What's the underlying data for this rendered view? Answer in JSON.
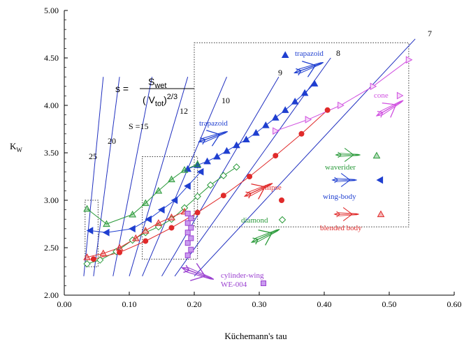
{
  "chart_data": {
    "type": "scatter",
    "xlabel": "Küchemann's tau",
    "ylabel": "K",
    "ylabel_sub": "W",
    "xlim": [
      0.0,
      0.6
    ],
    "ylim": [
      2.0,
      5.0
    ],
    "xticks": [
      "0.00",
      "0.10",
      "0.20",
      "0.30",
      "0.40",
      "0.50",
      "0.60"
    ],
    "yticks": [
      "2.00",
      "2.50",
      "3.00",
      "3.50",
      "4.00",
      "4.50",
      "5.00"
    ],
    "grid": false,
    "formula": {
      "lhs": "s =",
      "num": "S",
      "num_sub": "wet",
      "den_open": "( V",
      "den_sub": "tot",
      "den_close": ")",
      "den_exp": "2/3"
    },
    "s_lines": [
      {
        "label": "7",
        "x0": 0.2,
        "x1": 0.54
      },
      {
        "label": "8",
        "x0": 0.17,
        "x1": 0.41
      },
      {
        "label": "9",
        "x0": 0.15,
        "x1": 0.33
      },
      {
        "label": "10",
        "x0": 0.12,
        "x1": 0.25
      },
      {
        "label": "12",
        "x0": 0.1,
        "x1": 0.19
      },
      {
        "label": "S =15",
        "x0": 0.075,
        "x1": 0.135
      },
      {
        "label": "20",
        "x0": 0.045,
        "x1": 0.085
      },
      {
        "label": "25",
        "x0": 0.03,
        "x1": 0.06
      }
    ],
    "series": [
      {
        "name": "trapazoid",
        "color": "#1f3fd0",
        "marker": "triangle-up",
        "x": [
          0.19,
          0.205,
          0.22,
          0.235,
          0.25,
          0.265,
          0.28,
          0.295,
          0.31,
          0.325,
          0.34,
          0.355,
          0.37,
          0.385
        ],
        "y": [
          3.33,
          3.37,
          3.41,
          3.46,
          3.52,
          3.58,
          3.64,
          3.71,
          3.79,
          3.87,
          3.95,
          4.04,
          4.13,
          4.23
        ]
      },
      {
        "name": "trapazoid",
        "color": "#1f3fd0",
        "marker": "triangle-up",
        "x": [
          0.34
        ],
        "y": [
          4.53
        ]
      },
      {
        "name": "waverider",
        "color": "#2a9a3a",
        "marker": "triangle-up",
        "x": [
          0.035,
          0.065,
          0.105,
          0.125,
          0.145,
          0.165,
          0.185,
          0.205
        ],
        "y": [
          2.91,
          2.75,
          2.85,
          2.97,
          3.1,
          3.22,
          3.32,
          3.38
        ]
      },
      {
        "name": "wing-body",
        "color": "#1f3fd0",
        "marker": "triangle-left",
        "x": [
          0.04,
          0.065,
          0.105,
          0.13,
          0.15,
          0.17,
          0.19,
          0.21
        ],
        "y": [
          2.68,
          2.66,
          2.7,
          2.8,
          2.9,
          3.0,
          3.15,
          3.3
        ]
      },
      {
        "name": "diamond",
        "color": "#2a9a3a",
        "marker": "diamond",
        "x": [
          0.035,
          0.055,
          0.08,
          0.105,
          0.125,
          0.145,
          0.165,
          0.185,
          0.205,
          0.225,
          0.245,
          0.265
        ],
        "y": [
          2.33,
          2.37,
          2.46,
          2.58,
          2.66,
          2.72,
          2.8,
          2.92,
          3.04,
          3.16,
          3.26,
          3.35
        ]
      },
      {
        "name": "blended body",
        "color": "#e02a2a",
        "marker": "triangle-up",
        "x": [
          0.035,
          0.06,
          0.085,
          0.11,
          0.125,
          0.145,
          0.165,
          0.185
        ],
        "y": [
          2.4,
          2.44,
          2.5,
          2.6,
          2.68,
          2.76,
          2.82,
          2.88
        ]
      },
      {
        "name": "ellipse",
        "color": "#e02a2a",
        "marker": "circle",
        "x": [
          0.045,
          0.085,
          0.125,
          0.165,
          0.205,
          0.245,
          0.285,
          0.325,
          0.365,
          0.405
        ],
        "y": [
          2.38,
          2.45,
          2.57,
          2.71,
          2.87,
          3.05,
          3.25,
          3.47,
          3.7,
          3.95
        ]
      },
      {
        "name": "cone",
        "color": "#d050e0",
        "marker": "triangle-right",
        "x": [
          0.325,
          0.375,
          0.425,
          0.475,
          0.53
        ],
        "y": [
          3.73,
          3.85,
          4.0,
          4.2,
          4.48
        ]
      },
      {
        "name": "cylinder-wing WE-004",
        "color": "#9a40d0",
        "marker": "square",
        "x": [
          0.19,
          0.195,
          0.19,
          0.195,
          0.19,
          0.195,
          0.19,
          0.195,
          0.19
        ],
        "y": [
          2.42,
          2.48,
          2.55,
          2.6,
          2.66,
          2.71,
          2.76,
          2.81,
          2.86
        ]
      }
    ],
    "labels": {
      "trapazoid_top": "trapazoid",
      "trapazoid_mid": "trapazoid",
      "cone": "cone",
      "waverider": "waverider",
      "wing_body": "wing-body",
      "ellipse": "ellipse",
      "diamond": "diamond",
      "blended": "blended body",
      "cylinder1": "cylinder-wing",
      "cylinder2": "WE-004"
    }
  }
}
